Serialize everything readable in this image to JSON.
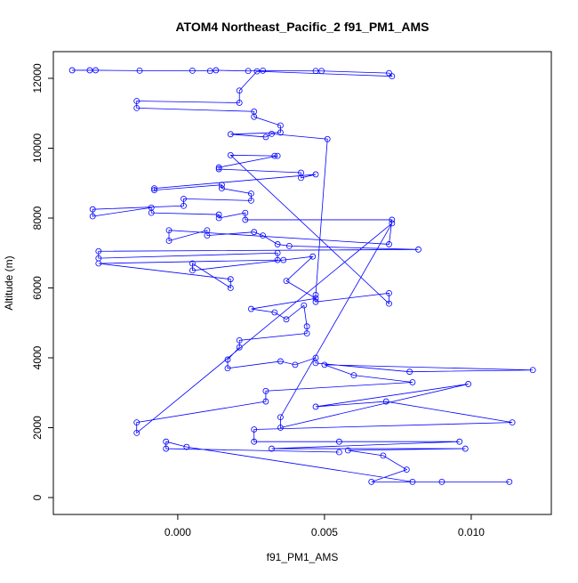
{
  "chart_data": {
    "type": "line",
    "title": "ATOM4 Northeast_Pacific_2 f91_PM1_AMS",
    "x_label": "f91_PM1_AMS",
    "y_label": "Altitude (m)",
    "color": "#0000ff",
    "markers": "open-circle",
    "xlim": [
      -0.00424,
      0.01273
    ],
    "ylim": [
      -484,
      12764
    ],
    "xticks": [
      {
        "value": 0,
        "label": "0.000"
      },
      {
        "value": 0.005,
        "label": "0.005"
      },
      {
        "value": 0.01,
        "label": "0.010"
      }
    ],
    "yticks": [
      0,
      2000,
      4000,
      6000,
      8000,
      10000,
      12000
    ],
    "x": [
      -0.0036,
      -0.003,
      -0.0028,
      -0.0013,
      0.0005,
      0.0011,
      0.0013,
      0.0024,
      0.0029,
      0.0047,
      0.0049,
      0.0072,
      0.0073,
      0.0027,
      0.0021,
      0.0021,
      -0.0014,
      -0.0014,
      0.0026,
      0.0026,
      0.0035,
      0.0035,
      0.0018,
      0.003,
      0.0032,
      0.0051,
      0.0047,
      0.0047,
      0.0072,
      0.0072,
      0.0018,
      0.0033,
      0.0034,
      0.0014,
      0.0014,
      0.0042,
      0.0042,
      0.0047,
      -0.0008,
      -0.0008,
      0.0015,
      0.0015,
      0.0025,
      0.0025,
      0.0002,
      0.0002,
      -0.0029,
      -0.0029,
      -0.0009,
      -0.0009,
      0.0014,
      0.0014,
      0.0023,
      0.0023,
      0.0073,
      0.0072,
      -0.0003,
      -0.0003,
      0.001,
      0.001,
      0.0026,
      0.0029,
      0.0034,
      0.0038,
      0.0082,
      -0.0027,
      -0.0027,
      0.0034,
      0.0034,
      -0.0027,
      0.0018,
      0.0018,
      0.0005,
      0.0005,
      0.0036,
      0.0046,
      0.0037,
      0.0047,
      0.0025,
      0.0033,
      0.0037,
      0.0043,
      0.0044,
      0.0044,
      0.0021,
      0.0021,
      0.0017,
      0.0017,
      0.0035,
      0.004,
      0.0047,
      0.0047,
      0.0079,
      0.0121,
      0.005,
      0.006,
      0.008,
      0.003,
      0.003,
      -0.0014,
      -0.0014,
      0.0073,
      0.0035,
      0.0035,
      0.0099,
      0.0047,
      0.0071,
      0.0114,
      0.0026,
      0.0026,
      0.0055,
      0.0096,
      0.0032,
      0.0098,
      0.0058,
      0.007,
      0.0078,
      0.0066,
      0.009,
      0.0113,
      0.008,
      0.0003,
      -0.0004,
      -0.0004,
      0.0055
    ],
    "values": [
      12230,
      12230,
      12230,
      12220,
      12220,
      12210,
      12230,
      12210,
      12220,
      12210,
      12210,
      12150,
      12060,
      12200,
      11650,
      11300,
      11350,
      11150,
      11050,
      10900,
      10650,
      10450,
      10400,
      10320,
      10410,
      10260,
      5800,
      5600,
      5850,
      5550,
      9800,
      9780,
      9780,
      9450,
      9400,
      9300,
      9150,
      9250,
      8850,
      8800,
      8950,
      8850,
      8700,
      8500,
      8550,
      8350,
      8250,
      8050,
      8300,
      8150,
      8100,
      8000,
      8150,
      7950,
      7950,
      7250,
      7650,
      7350,
      7650,
      7500,
      7600,
      7500,
      7250,
      7200,
      7100,
      7050,
      6850,
      7000,
      6800,
      6700,
      6250,
      6000,
      6700,
      6500,
      6800,
      6900,
      6200,
      5700,
      5400,
      5300,
      5100,
      5500,
      4900,
      4700,
      4500,
      4300,
      3950,
      3700,
      3900,
      3800,
      4000,
      3850,
      3600,
      3650,
      3800,
      3500,
      3300,
      3050,
      2750,
      2150,
      1850,
      7850,
      2300,
      2000,
      3250,
      2600,
      2750,
      2150,
      1950,
      1600,
      1600,
      1600,
      1400,
      1400,
      1350,
      1200,
      800,
      450,
      450,
      450,
      450,
      1450,
      1600,
      1400,
      1300
    ]
  }
}
